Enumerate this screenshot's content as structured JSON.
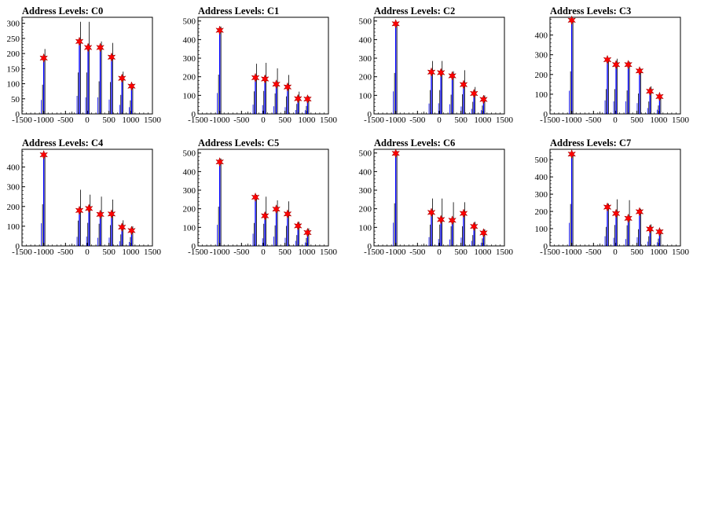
{
  "chart_data": [
    {
      "type": "bar",
      "title": "Address Levels: C0",
      "xlim": [
        -1500,
        1500
      ],
      "ylim": [
        0,
        320
      ],
      "xticks": [
        -1500,
        -1000,
        -500,
        0,
        500,
        1000,
        1500
      ],
      "xtick_labels": [
        "-1500",
        "-1000",
        "-500",
        "0",
        "500",
        "1000",
        "1500"
      ],
      "yticks": [
        0,
        50,
        100,
        150,
        200,
        250,
        300
      ],
      "ytick_labels": [
        "0",
        "50",
        "100",
        "150",
        "200",
        "250",
        "300"
      ],
      "histogram": [
        {
          "x": -1000,
          "black": 215,
          "blue": 185
        },
        {
          "x": -180,
          "black": 305,
          "blue": 240
        },
        {
          "x": 20,
          "black": 305,
          "blue": 220
        },
        {
          "x": 300,
          "black": 240,
          "blue": 220
        },
        {
          "x": 560,
          "black": 235,
          "blue": 190
        },
        {
          "x": 800,
          "black": 140,
          "blue": 120
        },
        {
          "x": 1020,
          "black": 100,
          "blue": 90
        }
      ],
      "markers": [
        {
          "x": -1000,
          "y": 185
        },
        {
          "x": -180,
          "y": 240
        },
        {
          "x": 20,
          "y": 220
        },
        {
          "x": 300,
          "y": 220
        },
        {
          "x": 560,
          "y": 188
        },
        {
          "x": 800,
          "y": 118
        },
        {
          "x": 1020,
          "y": 92
        }
      ]
    },
    {
      "type": "bar",
      "title": "Address Levels: C1",
      "xlim": [
        -1500,
        1500
      ],
      "ylim": [
        0,
        520
      ],
      "xticks": [
        -1500,
        -1000,
        -500,
        0,
        500,
        1000,
        1500
      ],
      "xtick_labels": [
        "-1500",
        "-1000",
        "-500",
        "0",
        "500",
        "1000",
        "1500"
      ],
      "yticks": [
        0,
        100,
        200,
        300,
        400,
        500
      ],
      "ytick_labels": [
        "0",
        "100",
        "200",
        "300",
        "400",
        "500"
      ],
      "histogram": [
        {
          "x": -1000,
          "black": 470,
          "blue": 450
        },
        {
          "x": -180,
          "black": 270,
          "blue": 200
        },
        {
          "x": 40,
          "black": 275,
          "blue": 190
        },
        {
          "x": 300,
          "black": 245,
          "blue": 165
        },
        {
          "x": 560,
          "black": 210,
          "blue": 145
        },
        {
          "x": 800,
          "black": 120,
          "blue": 85
        },
        {
          "x": 1020,
          "black": 95,
          "blue": 80
        }
      ],
      "markers": [
        {
          "x": -1000,
          "y": 450
        },
        {
          "x": -180,
          "y": 195
        },
        {
          "x": 40,
          "y": 188
        },
        {
          "x": 300,
          "y": 160
        },
        {
          "x": 560,
          "y": 145
        },
        {
          "x": 800,
          "y": 82
        },
        {
          "x": 1020,
          "y": 80
        }
      ]
    },
    {
      "type": "bar",
      "title": "Address Levels: C2",
      "xlim": [
        -1500,
        1500
      ],
      "ylim": [
        0,
        520
      ],
      "xticks": [
        -1500,
        -1000,
        -500,
        0,
        500,
        1000,
        1500
      ],
      "xtick_labels": [
        "-1500",
        "-1000",
        "-500",
        "0",
        "500",
        "1000",
        "1500"
      ],
      "yticks": [
        0,
        100,
        200,
        300,
        400,
        500
      ],
      "ytick_labels": [
        "0",
        "100",
        "200",
        "300",
        "400",
        "500"
      ],
      "histogram": [
        {
          "x": -1000,
          "black": 490,
          "blue": 485
        },
        {
          "x": -180,
          "black": 285,
          "blue": 225
        },
        {
          "x": 40,
          "black": 285,
          "blue": 230
        },
        {
          "x": 300,
          "black": 230,
          "blue": 210
        },
        {
          "x": 560,
          "black": 235,
          "blue": 160
        },
        {
          "x": 800,
          "black": 145,
          "blue": 110
        },
        {
          "x": 1020,
          "black": 100,
          "blue": 80
        }
      ],
      "markers": [
        {
          "x": -1000,
          "y": 485
        },
        {
          "x": -180,
          "y": 225
        },
        {
          "x": 40,
          "y": 222
        },
        {
          "x": 300,
          "y": 205
        },
        {
          "x": 560,
          "y": 158
        },
        {
          "x": 800,
          "y": 110
        },
        {
          "x": 1020,
          "y": 78
        }
      ]
    },
    {
      "type": "bar",
      "title": "Address Levels: C3",
      "xlim": [
        -1500,
        1500
      ],
      "ylim": [
        0,
        490
      ],
      "xticks": [
        -1500,
        -1000,
        -500,
        0,
        500,
        1000,
        1500
      ],
      "xtick_labels": [
        "-1500",
        "-1000",
        "-500",
        "0",
        "500",
        "1000",
        "1500"
      ],
      "yticks": [
        0,
        100,
        200,
        300,
        400
      ],
      "ytick_labels": [
        "0",
        "100",
        "200",
        "300",
        "400"
      ],
      "histogram": [
        {
          "x": -1000,
          "black": 480,
          "blue": 470
        },
        {
          "x": -180,
          "black": 280,
          "blue": 275
        },
        {
          "x": 20,
          "black": 280,
          "blue": 255
        },
        {
          "x": 300,
          "black": 265,
          "blue": 255
        },
        {
          "x": 560,
          "black": 230,
          "blue": 220
        },
        {
          "x": 800,
          "black": 140,
          "blue": 120
        },
        {
          "x": 1020,
          "black": 95,
          "blue": 85
        }
      ],
      "markers": [
        {
          "x": -1000,
          "y": 475
        },
        {
          "x": -180,
          "y": 275
        },
        {
          "x": 20,
          "y": 250
        },
        {
          "x": 300,
          "y": 250
        },
        {
          "x": 560,
          "y": 218
        },
        {
          "x": 800,
          "y": 115
        },
        {
          "x": 1020,
          "y": 88
        }
      ]
    },
    {
      "type": "bar",
      "title": "Address Levels: C4",
      "xlim": [
        -1500,
        1500
      ],
      "ylim": [
        0,
        490
      ],
      "xticks": [
        -1500,
        -1000,
        -500,
        0,
        500,
        1000,
        1500
      ],
      "xtick_labels": [
        "-1500",
        "-1000",
        "-500",
        "0",
        "500",
        "1000",
        "1500"
      ],
      "yticks": [
        0,
        100,
        200,
        300,
        400
      ],
      "ytick_labels": [
        "0",
        "100",
        "200",
        "300",
        "400"
      ],
      "histogram": [
        {
          "x": -1000,
          "black": 470,
          "blue": 460
        },
        {
          "x": -180,
          "black": 285,
          "blue": 185
        },
        {
          "x": 40,
          "black": 260,
          "blue": 190
        },
        {
          "x": 300,
          "black": 250,
          "blue": 165
        },
        {
          "x": 560,
          "black": 235,
          "blue": 170
        },
        {
          "x": 800,
          "black": 130,
          "blue": 95
        },
        {
          "x": 1020,
          "black": 100,
          "blue": 80
        }
      ],
      "markers": [
        {
          "x": -1000,
          "y": 462
        },
        {
          "x": -180,
          "y": 180
        },
        {
          "x": 40,
          "y": 190
        },
        {
          "x": 300,
          "y": 160
        },
        {
          "x": 560,
          "y": 162
        },
        {
          "x": 800,
          "y": 95
        },
        {
          "x": 1020,
          "y": 78
        }
      ]
    },
    {
      "type": "bar",
      "title": "Address Levels: C5",
      "xlim": [
        -1500,
        1500
      ],
      "ylim": [
        0,
        520
      ],
      "xticks": [
        -1500,
        -1000,
        -500,
        0,
        500,
        1000,
        1500
      ],
      "xtick_labels": [
        "-1500",
        "-1000",
        "-500",
        "0",
        "500",
        "1000",
        "1500"
      ],
      "yticks": [
        0,
        100,
        200,
        300,
        400,
        500
      ],
      "ytick_labels": [
        "0",
        "100",
        "200",
        "300",
        "400",
        "500"
      ],
      "histogram": [
        {
          "x": -1000,
          "black": 470,
          "blue": 455
        },
        {
          "x": -180,
          "black": 275,
          "blue": 265
        },
        {
          "x": 40,
          "black": 265,
          "blue": 165
        },
        {
          "x": 300,
          "black": 245,
          "blue": 200
        },
        {
          "x": 560,
          "black": 240,
          "blue": 175
        },
        {
          "x": 800,
          "black": 130,
          "blue": 110
        },
        {
          "x": 1020,
          "black": 95,
          "blue": 75
        }
      ],
      "markers": [
        {
          "x": -1000,
          "y": 452
        },
        {
          "x": -180,
          "y": 262
        },
        {
          "x": 40,
          "y": 162
        },
        {
          "x": 300,
          "y": 198
        },
        {
          "x": 560,
          "y": 172
        },
        {
          "x": 800,
          "y": 108
        },
        {
          "x": 1020,
          "y": 72
        }
      ]
    },
    {
      "type": "bar",
      "title": "Address Levels: C6",
      "xlim": [
        -1500,
        1500
      ],
      "ylim": [
        0,
        520
      ],
      "xticks": [
        -1500,
        -1000,
        -500,
        0,
        500,
        1000,
        1500
      ],
      "xtick_labels": [
        "-1500",
        "-1000",
        "-500",
        "0",
        "500",
        "1000",
        "1500"
      ],
      "yticks": [
        0,
        100,
        200,
        300,
        400,
        500
      ],
      "ytick_labels": [
        "0",
        "100",
        "200",
        "300",
        "400",
        "500"
      ],
      "histogram": [
        {
          "x": -1000,
          "black": 510,
          "blue": 500
        },
        {
          "x": -180,
          "black": 255,
          "blue": 190
        },
        {
          "x": 40,
          "black": 255,
          "blue": 150
        },
        {
          "x": 300,
          "black": 235,
          "blue": 140
        },
        {
          "x": 560,
          "black": 235,
          "blue": 180
        },
        {
          "x": 800,
          "black": 130,
          "blue": 110
        },
        {
          "x": 1020,
          "black": 90,
          "blue": 70
        }
      ],
      "markers": [
        {
          "x": -1000,
          "y": 498
        },
        {
          "x": -180,
          "y": 180
        },
        {
          "x": 40,
          "y": 142
        },
        {
          "x": 300,
          "y": 138
        },
        {
          "x": 560,
          "y": 175
        },
        {
          "x": 800,
          "y": 105
        },
        {
          "x": 1020,
          "y": 70
        }
      ]
    },
    {
      "type": "bar",
      "title": "Address Levels: C7",
      "xlim": [
        -1500,
        1500
      ],
      "ylim": [
        0,
        560
      ],
      "xticks": [
        -1500,
        -1000,
        -500,
        0,
        500,
        1000,
        1500
      ],
      "xtick_labels": [
        "-1500",
        "-1000",
        "-500",
        "0",
        "500",
        "1000",
        "1500"
      ],
      "yticks": [
        0,
        100,
        200,
        300,
        400,
        500
      ],
      "ytick_labels": [
        "0",
        "100",
        "200",
        "300",
        "400",
        "500"
      ],
      "histogram": [
        {
          "x": -1000,
          "black": 540,
          "blue": 535
        },
        {
          "x": -180,
          "black": 245,
          "blue": 225
        },
        {
          "x": 20,
          "black": 270,
          "blue": 190
        },
        {
          "x": 300,
          "black": 265,
          "blue": 160
        },
        {
          "x": 560,
          "black": 215,
          "blue": 200
        },
        {
          "x": 800,
          "black": 125,
          "blue": 100
        },
        {
          "x": 1020,
          "black": 95,
          "blue": 85
        }
      ],
      "markers": [
        {
          "x": -1000,
          "y": 532
        },
        {
          "x": -180,
          "y": 225
        },
        {
          "x": 20,
          "y": 188
        },
        {
          "x": 300,
          "y": 160
        },
        {
          "x": 560,
          "y": 198
        },
        {
          "x": 800,
          "y": 98
        },
        {
          "x": 1020,
          "y": 82
        }
      ]
    }
  ],
  "colors": {
    "axes": "#000000",
    "hist_primary": "#0000ff",
    "hist_secondary": "#000000",
    "marker_fill": "#ff0000",
    "marker_stroke": "#990000"
  }
}
